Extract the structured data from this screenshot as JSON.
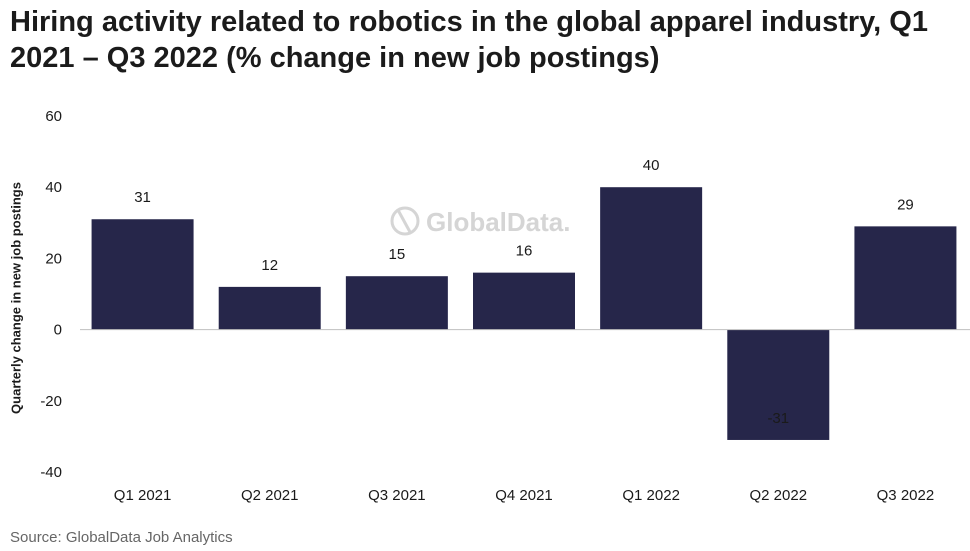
{
  "title": "Hiring activity related to robotics in the global apparel industry, Q1 2021 – Q3 2022 (% change in new job postings)",
  "source": "Source: GlobalData Job Analytics",
  "watermark": "GlobalData.",
  "colors": {
    "bar": "#26264a",
    "zero_line": "#bfbfbf",
    "text": "#1a1a1a"
  },
  "chart_data": {
    "type": "bar",
    "title": "Hiring activity related to robotics in the global apparel industry, Q1 2021 – Q3 2022 (% change in new job postings)",
    "xlabel": "",
    "ylabel": "Quarterly change in new job postings",
    "categories": [
      "Q1 2021",
      "Q2 2021",
      "Q3 2021",
      "Q4 2021",
      "Q1 2022",
      "Q2 2022",
      "Q3 2022"
    ],
    "values": [
      31,
      12,
      15,
      16,
      40,
      -31,
      29
    ],
    "data_labels": [
      "31",
      "12",
      "15",
      "16",
      "40",
      "-31",
      "29"
    ],
    "ylim": [
      -40,
      60
    ],
    "yticks": [
      60,
      40,
      20,
      0,
      -20,
      -40
    ],
    "grid": false,
    "legend": "none"
  }
}
